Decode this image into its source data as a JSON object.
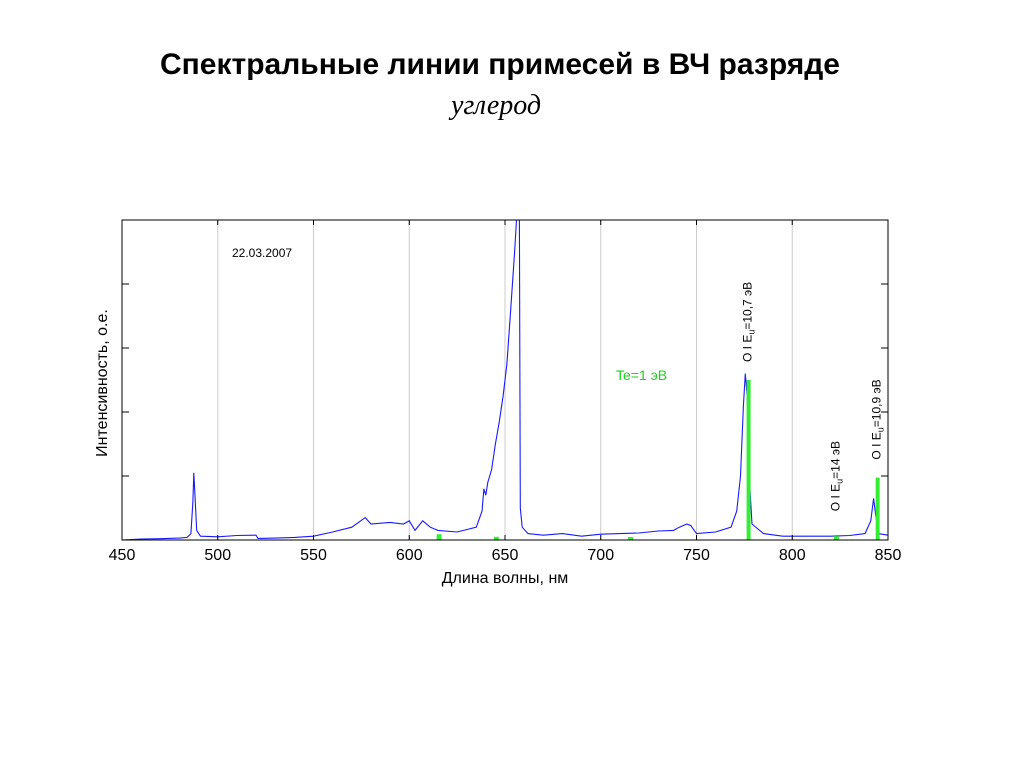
{
  "header": {
    "title": "Спектральные линии примесей в ВЧ разряде",
    "subtitle": "углерод"
  },
  "chart_data": {
    "type": "line",
    "xlabel": "Длина волны, нм",
    "ylabel": "Интенсивность, о.е.",
    "xlim": [
      450,
      850
    ],
    "ylim": [
      0,
      1
    ],
    "x_ticks": [
      450,
      500,
      550,
      600,
      650,
      700,
      750,
      800,
      850
    ],
    "grid": "vertical",
    "date_annotation": "22.03.2007",
    "te_annotation": "Te=1 эВ",
    "colors": {
      "spectrum": "#1a1aff",
      "lines": "#33ee33",
      "grid": "#cccccc"
    },
    "spectrum": [
      [
        450,
        0.0
      ],
      [
        460,
        0.003
      ],
      [
        470,
        0.004
      ],
      [
        480,
        0.006
      ],
      [
        484,
        0.008
      ],
      [
        486,
        0.02
      ],
      [
        487,
        0.12
      ],
      [
        487.5,
        0.21
      ],
      [
        488,
        0.15
      ],
      [
        489,
        0.03
      ],
      [
        491,
        0.012
      ],
      [
        500,
        0.01
      ],
      [
        510,
        0.014
      ],
      [
        520,
        0.015
      ],
      [
        521,
        0.005
      ],
      [
        530,
        0.006
      ],
      [
        540,
        0.008
      ],
      [
        550,
        0.012
      ],
      [
        560,
        0.025
      ],
      [
        570,
        0.04
      ],
      [
        577,
        0.07
      ],
      [
        580,
        0.05
      ],
      [
        590,
        0.055
      ],
      [
        597,
        0.05
      ],
      [
        600,
        0.06
      ],
      [
        603,
        0.03
      ],
      [
        607,
        0.06
      ],
      [
        611,
        0.04
      ],
      [
        615,
        0.03
      ],
      [
        625,
        0.025
      ],
      [
        635,
        0.04
      ],
      [
        638,
        0.09
      ],
      [
        639,
        0.16
      ],
      [
        640,
        0.14
      ],
      [
        641,
        0.18
      ],
      [
        643,
        0.22
      ],
      [
        645,
        0.3
      ],
      [
        647,
        0.37
      ],
      [
        649,
        0.45
      ],
      [
        651,
        0.55
      ],
      [
        653,
        0.72
      ],
      [
        655,
        0.9
      ],
      [
        656,
        1.0
      ],
      [
        657.5,
        1.0
      ],
      [
        658,
        0.1
      ],
      [
        659,
        0.04
      ],
      [
        662,
        0.02
      ],
      [
        670,
        0.015
      ],
      [
        680,
        0.02
      ],
      [
        690,
        0.012
      ],
      [
        695,
        0.015
      ],
      [
        700,
        0.018
      ],
      [
        710,
        0.02
      ],
      [
        720,
        0.022
      ],
      [
        730,
        0.028
      ],
      [
        738,
        0.03
      ],
      [
        741,
        0.04
      ],
      [
        745,
        0.05
      ],
      [
        747,
        0.045
      ],
      [
        750,
        0.02
      ],
      [
        760,
        0.025
      ],
      [
        768,
        0.04
      ],
      [
        771,
        0.09
      ],
      [
        773,
        0.2
      ],
      [
        774.5,
        0.42
      ],
      [
        775.5,
        0.52
      ],
      [
        776.5,
        0.45
      ],
      [
        777.5,
        0.2
      ],
      [
        779,
        0.05
      ],
      [
        785,
        0.02
      ],
      [
        795,
        0.012
      ],
      [
        810,
        0.012
      ],
      [
        820,
        0.012
      ],
      [
        830,
        0.014
      ],
      [
        838,
        0.02
      ],
      [
        841,
        0.06
      ],
      [
        842.5,
        0.13
      ],
      [
        843.5,
        0.08
      ],
      [
        845,
        0.02
      ],
      [
        850,
        0.015
      ]
    ],
    "lines": [
      {
        "x": 777.2,
        "y": 0.5,
        "label_text": "O I E",
        "label_sub": "u",
        "label_tail": "=10,7 эВ"
      },
      {
        "x": 823.0,
        "y": 0.012,
        "label_text": "O I E",
        "label_sub": "u",
        "label_tail": "=14 эВ"
      },
      {
        "x": 844.6,
        "y": 0.195,
        "label_text": "O I E",
        "label_sub": "u",
        "label_tail": "=10,9 эВ"
      },
      {
        "x": 615.6,
        "y": 0.018
      },
      {
        "x": 645.5,
        "y": 0.01
      },
      {
        "x": 715.6,
        "y": 0.008
      }
    ]
  }
}
